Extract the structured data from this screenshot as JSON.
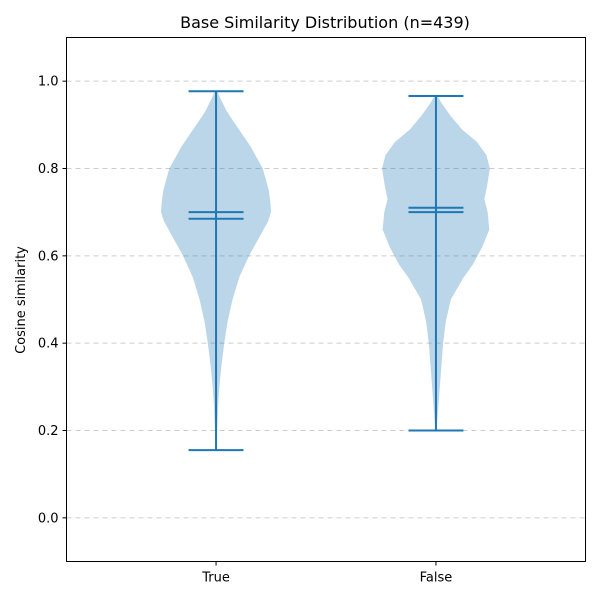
{
  "chart_data": {
    "type": "violin",
    "title": "Base Similarity Distribution (n=439)",
    "xlabel": "",
    "ylabel": "Cosine similarity",
    "ylim": [
      -0.1,
      1.1
    ],
    "yticks": [
      "0.0",
      "0.2",
      "0.4",
      "0.6",
      "0.8",
      "1.0"
    ],
    "grid": "y-dashed",
    "color": "#1f77b4",
    "categories": [
      "True",
      "False"
    ],
    "series": [
      {
        "category": "True",
        "min": 0.155,
        "max": 0.977,
        "mean": 0.7,
        "median": 0.685,
        "density": [
          [
            0.155,
            0.005
          ],
          [
            0.2,
            0.02
          ],
          [
            0.25,
            0.035
          ],
          [
            0.3,
            0.06
          ],
          [
            0.35,
            0.1
          ],
          [
            0.4,
            0.15
          ],
          [
            0.45,
            0.21
          ],
          [
            0.5,
            0.3
          ],
          [
            0.55,
            0.42
          ],
          [
            0.6,
            0.6
          ],
          [
            0.65,
            0.82
          ],
          [
            0.68,
            0.95
          ],
          [
            0.7,
            1.0
          ],
          [
            0.72,
            0.99
          ],
          [
            0.75,
            0.96
          ],
          [
            0.8,
            0.85
          ],
          [
            0.85,
            0.63
          ],
          [
            0.9,
            0.36
          ],
          [
            0.93,
            0.2
          ],
          [
            0.96,
            0.08
          ],
          [
            0.977,
            0.02
          ]
        ]
      },
      {
        "category": "False",
        "min": 0.2,
        "max": 0.966,
        "mean": 0.71,
        "median": 0.7,
        "density": [
          [
            0.2,
            0.01
          ],
          [
            0.25,
            0.04
          ],
          [
            0.3,
            0.07
          ],
          [
            0.35,
            0.1
          ],
          [
            0.4,
            0.13
          ],
          [
            0.45,
            0.18
          ],
          [
            0.5,
            0.27
          ],
          [
            0.55,
            0.5
          ],
          [
            0.58,
            0.67
          ],
          [
            0.62,
            0.84
          ],
          [
            0.66,
            0.97
          ],
          [
            0.7,
            0.94
          ],
          [
            0.73,
            0.88
          ],
          [
            0.76,
            0.93
          ],
          [
            0.8,
            0.98
          ],
          [
            0.83,
            0.92
          ],
          [
            0.86,
            0.75
          ],
          [
            0.89,
            0.47
          ],
          [
            0.92,
            0.27
          ],
          [
            0.95,
            0.1
          ],
          [
            0.966,
            0.03
          ]
        ]
      }
    ]
  }
}
